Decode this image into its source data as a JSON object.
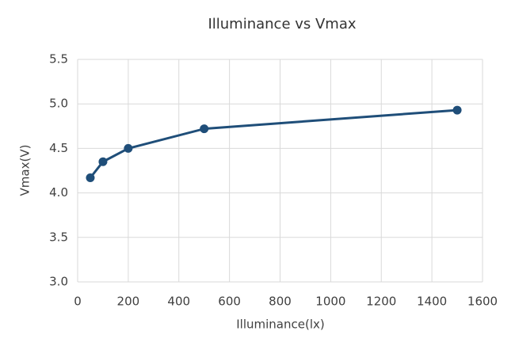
{
  "chart_data": {
    "type": "line",
    "title": "Illuminance vs Vmax",
    "x_label": "Illuminance(lx)",
    "y_label": "Vmax(V)",
    "x": [
      50,
      100,
      200,
      500,
      1500
    ],
    "series": [
      {
        "color": "#1f4e79",
        "values": [
          4.17,
          4.35,
          4.5,
          4.72,
          4.93
        ]
      }
    ],
    "xlim": [
      0,
      1600
    ],
    "xticks": [
      0,
      200,
      400,
      600,
      800,
      1000,
      1200,
      1400,
      1600
    ],
    "ylim": [
      3.0,
      5.5
    ],
    "yticks": [
      {
        "value": 3,
        "label": "3.0"
      },
      3.5,
      {
        "value": 4,
        "label": "4.0"
      },
      4.5,
      {
        "value": 5,
        "label": "5.0"
      },
      5.5
    ],
    "grid": true
  }
}
